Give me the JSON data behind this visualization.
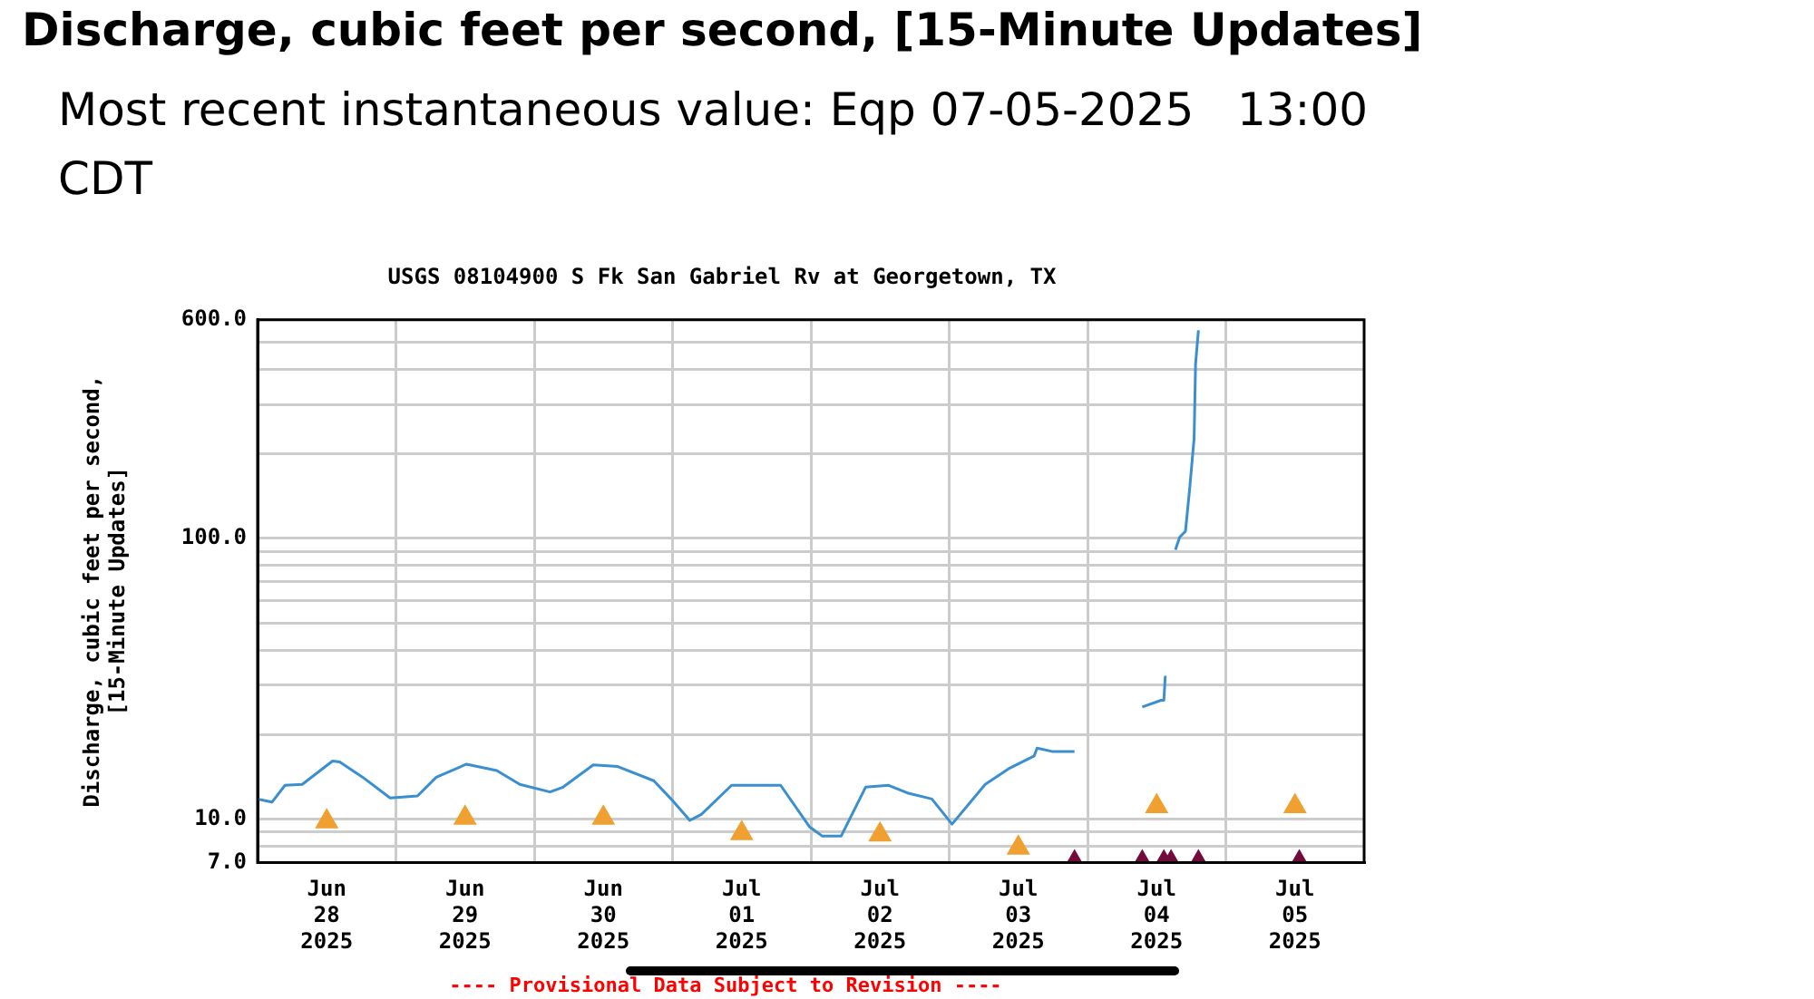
{
  "chart_data": {
    "type": "line",
    "title": "Discharge, cubic feet per second, [15-Minute Updates]",
    "subtitle": "Most recent instantaneous value: Eqp 07-05-2025   13:00 CDT",
    "annotations": [
      "USGS 08104900 S Fk San Gabriel Rv at Georgetown, TX",
      "---- Provisional Data Subject to Revision ----"
    ],
    "ylabel": "Discharge, cubic feet per second, [15-Minute Updates]",
    "log": true,
    "grid": true,
    "xlim": [
      "2025-06-28",
      "2025-07-06"
    ],
    "xticks": [
      {
        "value": "2025-06-28T12:00",
        "label": "Jun 28 2025"
      },
      {
        "value": "2025-06-29",
        "label": null
      },
      {
        "value": "2025-06-29T12:00",
        "label": "Jun 29 2025"
      },
      {
        "value": "2025-06-30",
        "label": null
      },
      {
        "value": "2025-06-30T12:00",
        "label": "Jun 30 2025"
      },
      {
        "value": "2025-07-01",
        "label": null
      },
      {
        "value": "2025-07-01T12:00",
        "label": "Jul 01 2025"
      },
      {
        "value": "2025-07-02",
        "label": null
      },
      {
        "value": "2025-07-02T12:00",
        "label": "Jul 02 2025"
      },
      {
        "value": "2025-07-03",
        "label": null
      },
      {
        "value": "2025-07-03T12:00",
        "label": "Jul 03 2025"
      },
      {
        "value": "2025-07-04",
        "label": null
      },
      {
        "value": "2025-07-04T12:00",
        "label": "Jul 04 2025"
      },
      {
        "value": "2025-07-05",
        "label": null
      },
      {
        "value": "2025-07-05T12:00",
        "label": "Jul 05 2025"
      }
    ],
    "ylim": [
      7,
      600
    ],
    "yticks": [
      {
        "value": 7,
        "label": "7.0"
      },
      {
        "value": 8,
        "label": null
      },
      {
        "value": 9,
        "label": null
      },
      {
        "value": 10,
        "label": "10.0"
      },
      {
        "value": 20,
        "label": null
      },
      {
        "value": 30,
        "label": null
      },
      {
        "value": 40,
        "label": null
      },
      {
        "value": 50,
        "label": null
      },
      {
        "value": 60,
        "label": null
      },
      {
        "value": 70,
        "label": null
      },
      {
        "value": 80,
        "label": null
      },
      {
        "value": 90,
        "label": null
      },
      {
        "value": 100,
        "label": "100.0"
      },
      {
        "value": 200,
        "label": null
      },
      {
        "value": 300,
        "label": null
      },
      {
        "value": 400,
        "label": null
      },
      {
        "value": 500,
        "label": null
      },
      {
        "value": 600,
        "label": "600.0"
      }
    ],
    "series": [
      {
        "marker": "none",
        "color": "#3a8fd0",
        "x": [
          "2025-06-28T00:00",
          "2025-06-28T02:30",
          "2025-06-28T04:45",
          "2025-06-28T07:45",
          "2025-06-28T13:00",
          "2025-06-28T14:15",
          "2025-06-28T18:15",
          "2025-06-28T23:00",
          "2025-06-29T03:45",
          "2025-06-29T07:00",
          "2025-06-29T12:15",
          "2025-06-29T17:30",
          "2025-06-29T21:30",
          "2025-06-30T02:45",
          "2025-06-30T05:00",
          "2025-06-30T10:15",
          "2025-06-30T14:30",
          "2025-06-30T20:45",
          "2025-06-30T23:45",
          "2025-07-01T03:00",
          "2025-07-01T05:00",
          "2025-07-01T10:15",
          "2025-07-01T18:45",
          "2025-07-01T23:45",
          "2025-07-02T02:00",
          "2025-07-02T05:15",
          "2025-07-02T09:30",
          "2025-07-02T13:30",
          "2025-07-02T16:45",
          "2025-07-02T21:00",
          "2025-07-03T00:30",
          "2025-07-03T06:15",
          "2025-07-03T10:30",
          "2025-07-03T14:45",
          "2025-07-03T15:15",
          "2025-07-03T18:00",
          "2025-07-03T21:45",
          "2025-07-04T03:00",
          "2025-07-04T09:30",
          "2025-07-04T12:45",
          "2025-07-04T13:15",
          "2025-07-04T13:30",
          "2025-07-04T14:15",
          "2025-07-04T15:15",
          "2025-07-04T16:00",
          "2025-07-04T17:00",
          "2025-07-04T17:45",
          "2025-07-04T18:30",
          "2025-07-04T18:45",
          "2025-07-04T19:15"
        ],
        "values": [
          11.8,
          11.5,
          13.2,
          13.3,
          16.1,
          16.0,
          14.1,
          11.9,
          12.1,
          14.1,
          15.7,
          14.9,
          13.3,
          12.5,
          13.0,
          15.6,
          15.4,
          13.7,
          11.8,
          9.9,
          10.4,
          13.2,
          13.2,
          9.4,
          8.7,
          8.7,
          13.0,
          13.2,
          12.4,
          11.8,
          9.6,
          13.3,
          15.2,
          16.8,
          17.9,
          17.4,
          17.4,
          null,
          25.1,
          26.5,
          26.5,
          32.4,
          null,
          91,
          101,
          106,
          152,
          227,
          417,
          551
        ]
      },
      {
        "type": "scatter",
        "marker": "triangle",
        "color": "#f0a030",
        "x": [
          "2025-06-28T12:00",
          "2025-06-29T12:00",
          "2025-06-30T12:00",
          "2025-07-01T12:00",
          "2025-07-02T12:00",
          "2025-07-03T12:00",
          "2025-07-04T12:00",
          "2025-07-05T12:00"
        ],
        "values": [
          9.8,
          10.1,
          10.1,
          8.9,
          8.8,
          7.9,
          11.1,
          11.1
        ]
      },
      {
        "type": "scatter",
        "marker": "triangle",
        "color": "#730b3b",
        "x": [
          "2025-07-03T21:45",
          "2025-07-04T09:30",
          "2025-07-04T13:15",
          "2025-07-04T14:30",
          "2025-07-04T19:15",
          "2025-07-05T12:45"
        ],
        "values": [
          7,
          7,
          7,
          7,
          7,
          7
        ]
      }
    ]
  }
}
